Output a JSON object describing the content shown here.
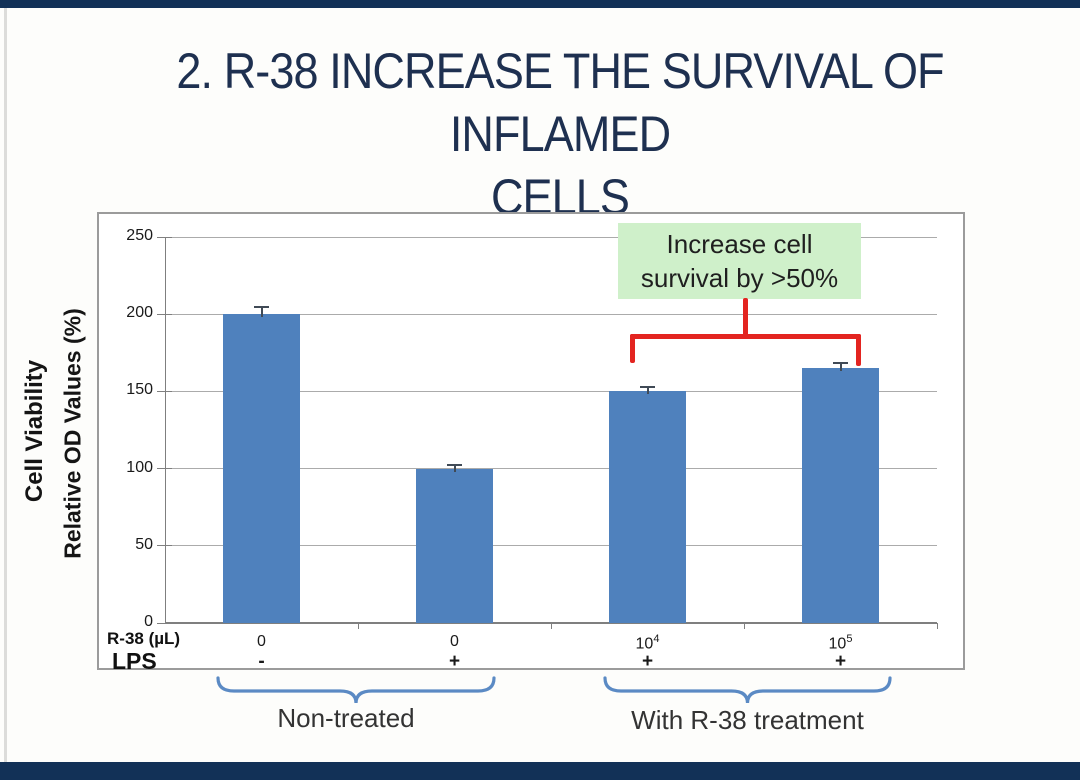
{
  "slide": {
    "title_lines": [
      "2. R-38 INCREASE THE SURVIVAL OF INFLAMED",
      "CELLS"
    ],
    "accent_color": "#123157",
    "title_color": "#1e3050"
  },
  "chart_data": {
    "type": "bar",
    "title": "",
    "ylabel_outer": "Cell Viability",
    "ylabel_inner": "Relative OD Values (%)",
    "xlabel": "",
    "ylim": [
      0,
      250
    ],
    "yticks": [
      0,
      50,
      100,
      150,
      200,
      250
    ],
    "grid": true,
    "legend": "none",
    "bar_color": "#4f81bd",
    "values": [
      200,
      100,
      150,
      165
    ],
    "errors": [
      4,
      2,
      2,
      3
    ],
    "categories": [
      {
        "r38_base": "0",
        "r38_sup": "",
        "lps": "-"
      },
      {
        "r38_base": "0",
        "r38_sup": "",
        "lps": "+"
      },
      {
        "r38_base": "10",
        "r38_sup": "4",
        "lps": "+"
      },
      {
        "r38_base": "10",
        "r38_sup": "5",
        "lps": "+"
      }
    ],
    "x_row_labels": {
      "row1": "R-38 (µL)",
      "row2": "LPS"
    },
    "groups": [
      {
        "label": "Non-treated",
        "categories": [
          0,
          1
        ]
      },
      {
        "label": "With R-38 treatment",
        "categories": [
          2,
          3
        ]
      }
    ]
  },
  "annotation": {
    "lines": [
      "Increase cell",
      "survival by >50%"
    ],
    "bg_color": "#cff0ca",
    "bracket_color": "#e32420",
    "target": "bars 3 and 4"
  }
}
